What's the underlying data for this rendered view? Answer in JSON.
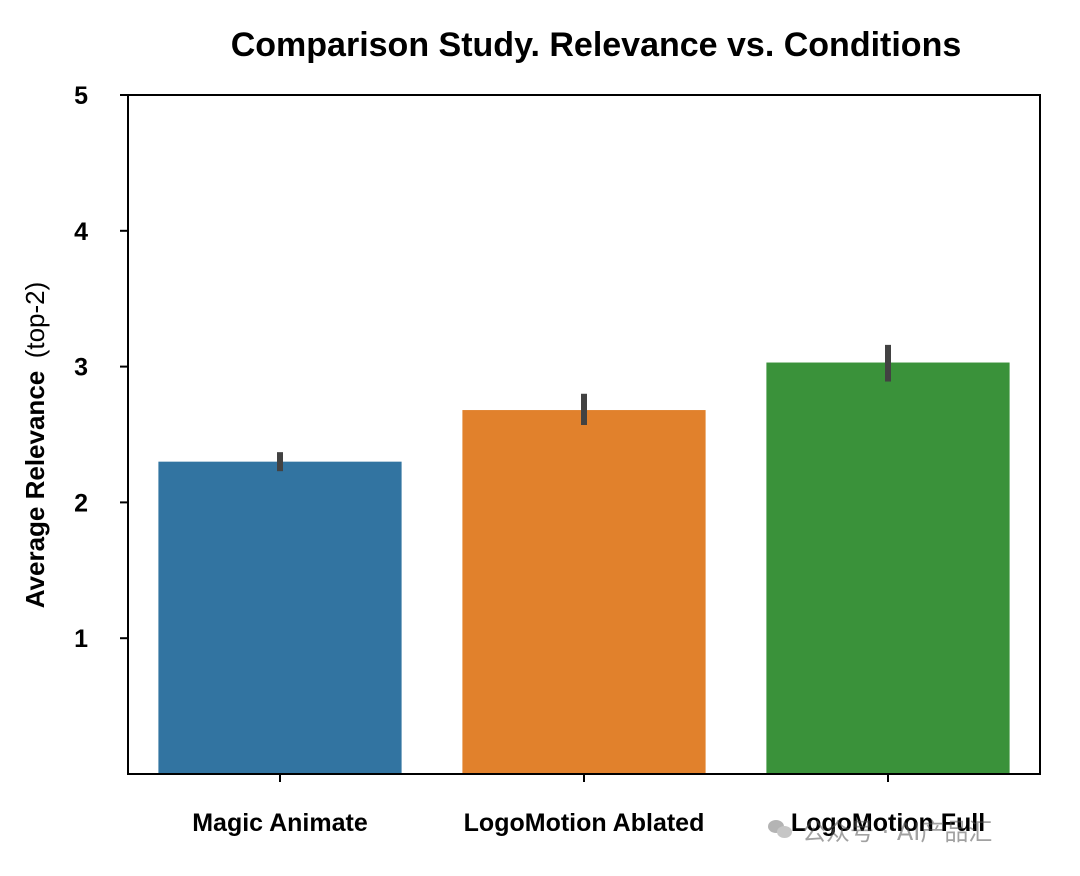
{
  "chart_data": {
    "type": "bar",
    "title": "Comparison Study. Relevance vs. Conditions",
    "ylabel_main": "Average Relevance",
    "ylabel_suffix": "(top-2)",
    "xlabel": "",
    "categories": [
      "Magic Animate",
      "LogoMotion Ablated",
      "LogoMotion Full"
    ],
    "values": [
      2.3,
      2.68,
      3.03
    ],
    "error_low": [
      2.23,
      2.57,
      2.89
    ],
    "error_high": [
      2.37,
      2.8,
      3.16
    ],
    "colors": [
      "#3274a1",
      "#e1812c",
      "#3a923a"
    ],
    "error_color": "#424242",
    "ylim": [
      0,
      5
    ],
    "yticks": [
      "1",
      "2",
      "3",
      "4",
      "5"
    ],
    "grid": false
  },
  "watermark": {
    "icon": "wechat-icon",
    "text": "公众号 · AI产品汇"
  }
}
